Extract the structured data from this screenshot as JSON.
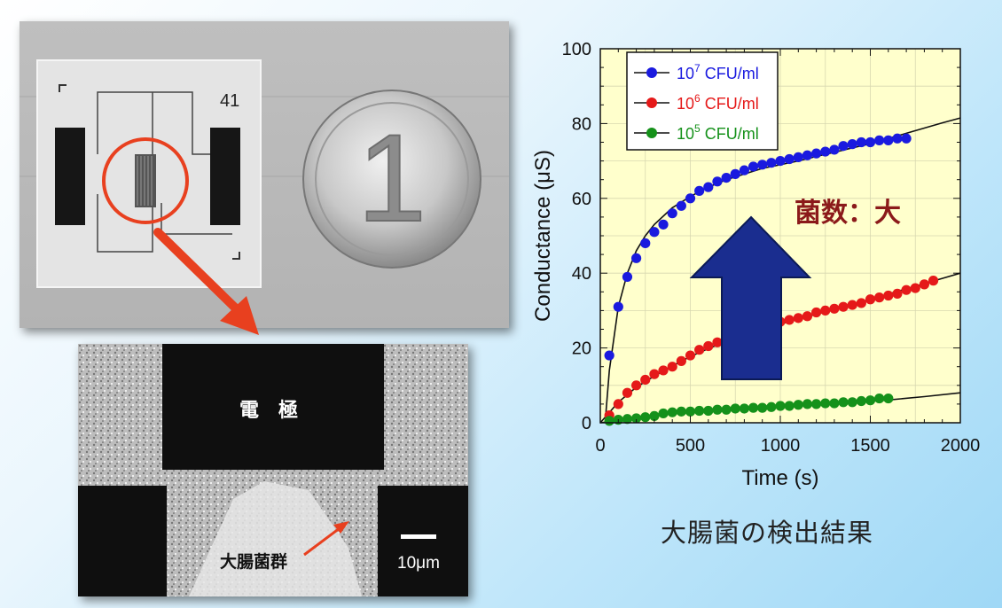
{
  "chip_photo": {
    "chip_number": "41",
    "coin_numeral": "1"
  },
  "sem_photo": {
    "electrode_label": "電　極",
    "bacteria_label": "大腸菌群",
    "scale_label": "10μm"
  },
  "annotation": "菌数：大",
  "caption": "大腸菌の検出結果",
  "colors": {
    "series_blue": "#1a1adf",
    "series_red": "#e51919",
    "series_green": "#15911a",
    "plot_bg": "#ffffcc",
    "arrow": "#1a2d8f",
    "annotation": "#8b1a1a",
    "circle": "#e8401f"
  },
  "chart_data": {
    "type": "scatter",
    "title": "",
    "xlabel": "Time (s)",
    "ylabel": "Conductance (μS)",
    "xlim": [
      0,
      2000
    ],
    "ylim": [
      0,
      100
    ],
    "xticks": [
      0,
      500,
      1000,
      1500,
      2000
    ],
    "yticks": [
      0,
      20,
      40,
      60,
      80,
      100
    ],
    "grid": true,
    "legend_position": "top-left",
    "series": [
      {
        "name": "10",
        "superscript": "7",
        "suffix": " CFU/ml",
        "color": "#1a1adf",
        "x": [
          50,
          100,
          150,
          200,
          250,
          300,
          350,
          400,
          450,
          500,
          550,
          600,
          650,
          700,
          750,
          800,
          850,
          900,
          950,
          1000,
          1050,
          1100,
          1150,
          1200,
          1250,
          1300,
          1350,
          1400,
          1450,
          1500,
          1550,
          1600,
          1650,
          1700
        ],
        "y": [
          18,
          31,
          39,
          44,
          48,
          51,
          53,
          56,
          58,
          60,
          62,
          63,
          64.5,
          65.5,
          66.5,
          67.5,
          68.5,
          69,
          69.5,
          70,
          70.5,
          71,
          71.5,
          72,
          72.5,
          73,
          74,
          74.5,
          75,
          75,
          75.5,
          75.5,
          76,
          76
        ],
        "fit_x": [
          30,
          50,
          100,
          150,
          200,
          250,
          300,
          400,
          500,
          600,
          700,
          800,
          900,
          1000,
          1100,
          1200,
          1300,
          1400,
          1500,
          1600,
          1700,
          1800,
          1900,
          2000
        ],
        "fit_y": [
          2,
          14,
          31,
          40,
          46,
          50,
          53,
          57.5,
          60.5,
          63,
          65,
          66.5,
          68,
          69,
          70,
          71.2,
          72.3,
          73.5,
          74.6,
          76,
          77.4,
          78.8,
          80.2,
          81.5
        ]
      },
      {
        "name": "10",
        "superscript": "6",
        "suffix": " CFU/ml",
        "color": "#e51919",
        "x": [
          50,
          100,
          150,
          200,
          250,
          300,
          350,
          400,
          450,
          500,
          550,
          600,
          650,
          700,
          750,
          800,
          850,
          900,
          950,
          1000,
          1050,
          1100,
          1150,
          1200,
          1250,
          1300,
          1350,
          1400,
          1450,
          1500,
          1550,
          1600,
          1650,
          1700,
          1750,
          1800,
          1850
        ],
        "y": [
          2,
          5,
          8,
          10,
          11.5,
          13,
          14,
          15,
          16.5,
          18,
          19.5,
          20.5,
          21.5,
          22.5,
          23,
          24,
          25,
          25.5,
          26,
          27,
          27.5,
          28,
          28.5,
          29.5,
          30,
          30.5,
          31,
          31.5,
          32,
          33,
          33.5,
          34,
          34.5,
          35.5,
          36,
          37,
          38
        ],
        "fit_x": [
          0,
          100,
          200,
          300,
          400,
          500,
          600,
          700,
          800,
          900,
          1000,
          1100,
          1200,
          1300,
          1400,
          1500,
          1600,
          1700,
          1800,
          1900,
          2000
        ],
        "fit_y": [
          0,
          5.5,
          9.5,
          12.5,
          15.2,
          17.7,
          19.8,
          21.8,
          23.5,
          25,
          26.4,
          27.7,
          29,
          30.3,
          31.6,
          33,
          34.4,
          35.8,
          37.2,
          38.6,
          40
        ]
      },
      {
        "name": "10",
        "superscript": "5",
        "suffix": " CFU/ml",
        "color": "#15911a",
        "x": [
          50,
          100,
          150,
          200,
          250,
          300,
          350,
          400,
          450,
          500,
          550,
          600,
          650,
          700,
          750,
          800,
          850,
          900,
          950,
          1000,
          1050,
          1100,
          1150,
          1200,
          1250,
          1300,
          1350,
          1400,
          1450,
          1500,
          1550,
          1600
        ],
        "y": [
          0.5,
          0.8,
          1,
          1.2,
          1.5,
          1.8,
          2.5,
          2.8,
          3,
          3,
          3.2,
          3.2,
          3.5,
          3.5,
          3.8,
          3.8,
          4,
          4,
          4.2,
          4.5,
          4.5,
          4.8,
          5,
          5,
          5.2,
          5.2,
          5.5,
          5.5,
          5.8,
          6,
          6.5,
          6.5
        ],
        "fit_x": [
          0,
          200,
          400,
          600,
          800,
          1000,
          1200,
          1400,
          1600,
          1800,
          2000
        ],
        "fit_y": [
          0,
          1.3,
          2.4,
          3.1,
          3.7,
          4.2,
          4.8,
          5.4,
          6.1,
          7,
          8
        ]
      }
    ]
  }
}
